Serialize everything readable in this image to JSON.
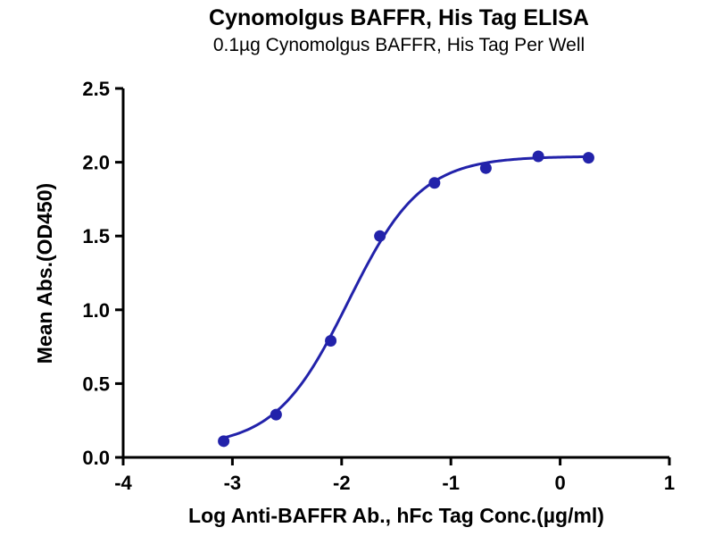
{
  "chart_data": {
    "type": "scatter",
    "title": "Cynomolgus BAFFR, His Tag ELISA",
    "subtitle": "0.1µg Cynomolgus BAFFR, His Tag Per Well",
    "xlabel": "Log Anti-BAFFR Ab., hFc Tag Conc.(µg/ml)",
    "ylabel": "Mean Abs.(OD450)",
    "xlim": [
      -4,
      1
    ],
    "ylim": [
      0,
      2.5
    ],
    "x_ticks": [
      -4,
      -3,
      -2,
      -1,
      0,
      1
    ],
    "x_tick_labels": [
      "-4",
      "-3",
      "-2",
      "-1",
      "0",
      "1"
    ],
    "y_ticks": [
      0,
      0.5,
      1.0,
      1.5,
      2.0,
      2.5
    ],
    "y_tick_labels": [
      "0.0",
      "0.5",
      "1.0",
      "1.5",
      "2.0",
      "2.5"
    ],
    "grid": false,
    "legend": "none",
    "series": [
      {
        "name": "Anti-BAFFR Ab., hFc Tag",
        "x": [
          -3.08,
          -2.6,
          -2.1,
          -1.65,
          -1.15,
          -0.68,
          -0.2,
          0.26
        ],
        "y": [
          0.11,
          0.29,
          0.79,
          1.5,
          1.86,
          1.96,
          2.04,
          2.03
        ]
      }
    ],
    "fit_curve": {
      "model": "4PL-sigmoid",
      "bottom": 0.07,
      "top": 2.04,
      "log_ec50": -1.94,
      "hill": 1.3,
      "x_start": -3.08,
      "x_end": 0.26
    },
    "style": {
      "point_color": "#2222aa",
      "line_color": "#2222aa",
      "axis_color": "#000000",
      "marker_radius": 6.5,
      "line_width": 3,
      "axis_width": 3,
      "tick_length": 9
    }
  }
}
